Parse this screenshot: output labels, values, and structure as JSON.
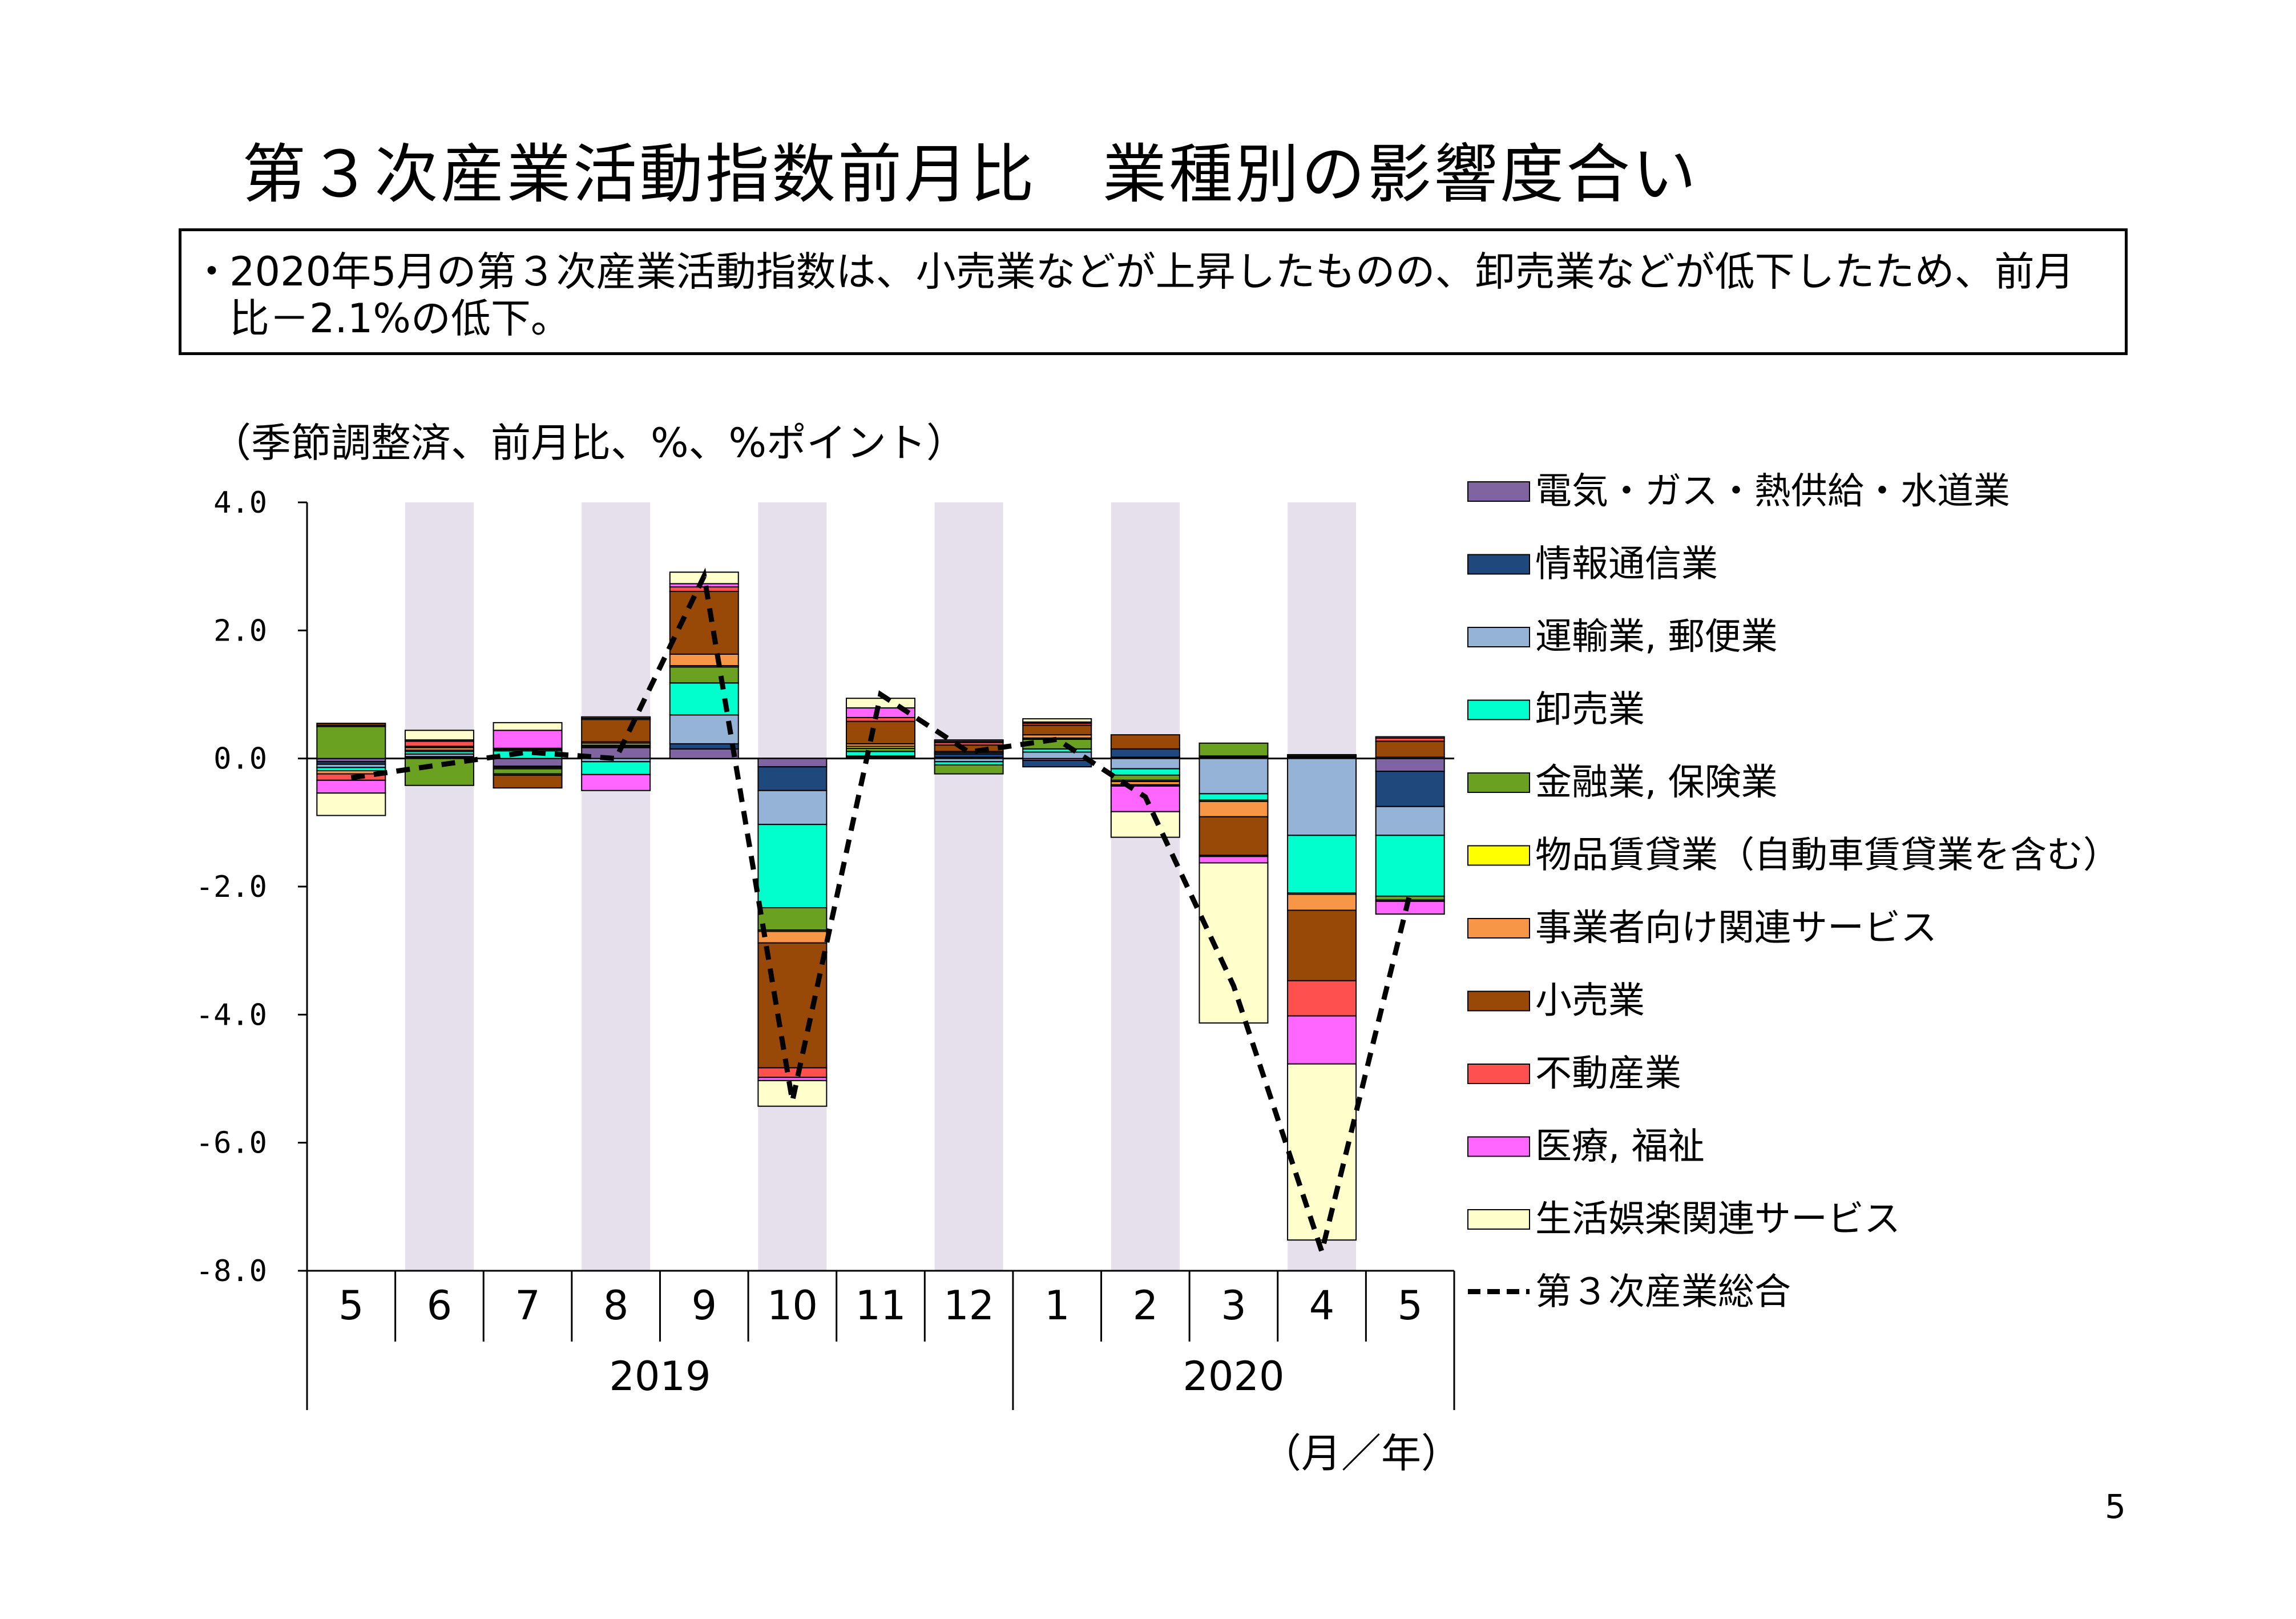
{
  "page": {
    "title": "第３次産業活動指数前月比　業種別の影響度合い",
    "summary_bullet": "・",
    "summary": "2020年5月の第３次産業活動指数は、小売業などが上昇したものの、卸売業などが低下したため、前月比－2.1%の低下。",
    "unit_note": "（季節調整済、前月比、%、%ポイント）",
    "axis_note": "（月／年）",
    "page_number": "5"
  },
  "chart_data": {
    "type": "bar",
    "stacked": true,
    "title": "第３次産業活動指数前月比　業種別の影響度合い",
    "ylabel": "（季節調整済、前月比、%、%ポイント）",
    "xlabel": "（月／年）",
    "ylim": [
      -8.0,
      4.0
    ],
    "yticks": [
      4.0,
      2.0,
      0.0,
      -2.0,
      -4.0,
      -6.0,
      -8.0
    ],
    "ytick_labels": [
      "4.0",
      "2.0",
      "0.0",
      "-2.0",
      "-4.0",
      "-6.0",
      "-8.0"
    ],
    "categories": [
      "5",
      "6",
      "7",
      "8",
      "9",
      "10",
      "11",
      "12",
      "1",
      "2",
      "3",
      "4",
      "5"
    ],
    "year_groups": [
      {
        "label": "2019",
        "start": 0,
        "end": 7
      },
      {
        "label": "2020",
        "start": 8,
        "end": 12
      }
    ],
    "shaded_categories": [
      1,
      3,
      5,
      7,
      9,
      11
    ],
    "shade_color": "#e5e0ec",
    "legend_position": "right",
    "series": [
      {
        "name": "電気・ガス・熱供給・水道業",
        "color": "#8064a2",
        "values": [
          -0.05,
          0.02,
          -0.12,
          0.17,
          0.15,
          -0.13,
          0.02,
          0.02,
          -0.03,
          0.02,
          0.02,
          0.02,
          -0.2
        ]
      },
      {
        "name": "情報通信業",
        "color": "#1f497d",
        "values": [
          -0.04,
          0.01,
          -0.02,
          0.02,
          0.08,
          -0.37,
          0.01,
          0.05,
          -0.1,
          0.13,
          0.02,
          0.02,
          -0.55
        ]
      },
      {
        "name": "運輸業, 郵便業",
        "color": "#95b3d7",
        "values": [
          -0.05,
          0.04,
          -0.02,
          -0.05,
          0.45,
          -0.53,
          0.01,
          -0.05,
          0.1,
          -0.16,
          -0.55,
          -1.2,
          -0.45
        ]
      },
      {
        "name": "卸売業",
        "color": "#00ffcc",
        "values": [
          -0.05,
          0.04,
          0.12,
          -0.2,
          0.5,
          -1.3,
          0.07,
          -0.05,
          0.05,
          -0.1,
          -0.1,
          -0.9,
          -0.95
        ]
      },
      {
        "name": "金融業, 保険業",
        "color": "#6ba121",
        "values": [
          0.5,
          -0.42,
          -0.08,
          0.02,
          0.25,
          -0.35,
          0.05,
          -0.14,
          0.15,
          -0.08,
          0.2,
          0.02,
          -0.06
        ]
      },
      {
        "name": "物品賃貸業（自動車賃貸業を含む）",
        "color": "#ffff00",
        "values": [
          0.02,
          0.02,
          -0.02,
          0.03,
          0.02,
          -0.02,
          0.03,
          0.02,
          0.02,
          -0.02,
          -0.02,
          -0.02,
          -0.02
        ]
      },
      {
        "name": "事業者向け関連サービス",
        "color": "#f79646",
        "values": [
          -0.05,
          0.04,
          0.02,
          0.02,
          0.18,
          -0.18,
          0.04,
          0.02,
          0.05,
          -0.05,
          -0.24,
          -0.25,
          0.02
        ]
      },
      {
        "name": "小売業",
        "color": "#984807",
        "values": [
          0.03,
          0.02,
          -0.2,
          0.35,
          0.98,
          -1.95,
          0.35,
          0.1,
          0.15,
          0.22,
          -0.6,
          -1.1,
          0.25
        ]
      },
      {
        "name": "不動産業",
        "color": "#ff5050",
        "values": [
          -0.1,
          0.08,
          0.02,
          0.02,
          0.07,
          -0.15,
          0.06,
          0.04,
          0.03,
          -0.02,
          -0.02,
          -0.55,
          0.05
        ]
      },
      {
        "name": "医療, 福祉",
        "color": "#ff66ff",
        "values": [
          -0.2,
          0.02,
          0.28,
          -0.25,
          0.05,
          -0.05,
          0.15,
          0.02,
          0.02,
          -0.4,
          -0.1,
          -0.75,
          -0.2
        ]
      },
      {
        "name": "生活娯楽関連サービス",
        "color": "#ffffcc",
        "values": [
          -0.35,
          0.15,
          0.12,
          0.02,
          0.18,
          -0.4,
          0.15,
          0.02,
          0.05,
          -0.4,
          -2.5,
          -2.75,
          0.02
        ]
      }
    ],
    "total": {
      "name": "第３次産業総合",
      "values": [
        -0.3,
        -0.1,
        0.1,
        0.0,
        2.85,
        -5.35,
        1.0,
        0.1,
        0.3,
        -0.6,
        -3.55,
        -7.7,
        -2.1
      ]
    }
  }
}
